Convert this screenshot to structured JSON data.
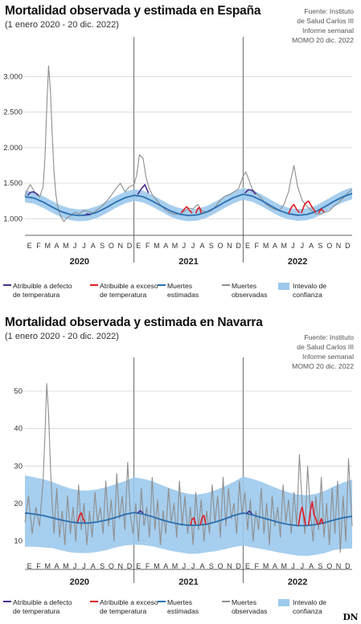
{
  "chart_data": [
    {
      "type": "line",
      "title": "Mortalidad observada y estimada en España",
      "subtitle": "(1 enero 2020 - 20 dic. 2022)",
      "source": [
        "Fuente: Instituto",
        "de Salud Carlos III",
        "Informe semanal",
        "MOMO 20 dic. 2022"
      ],
      "ylim": [
        880,
        3400
      ],
      "yticks": [
        1000,
        1500,
        2000,
        2500,
        3000
      ],
      "ytick_labels": [
        "1.000",
        "1.500",
        "2.000",
        "2.500",
        "3.000"
      ],
      "months": [
        "E",
        "F",
        "M",
        "A",
        "M",
        "J",
        "J",
        "A",
        "S",
        "O",
        "N",
        "D",
        "E",
        "F",
        "M",
        "A",
        "M",
        "J",
        "J",
        "A",
        "S",
        "O",
        "N",
        "D",
        "E",
        "F",
        "M",
        "A",
        "M",
        "J",
        "J",
        "A",
        "S",
        "O",
        "N",
        "D"
      ],
      "years": [
        "2020",
        "2021",
        "2022"
      ],
      "grid": true,
      "legend_position": "bottom",
      "expected": {
        "name": "Muertes estimadas",
        "color": "#2a6fb0",
        "x": [
          0,
          1,
          2,
          3,
          4,
          5,
          6,
          7,
          8,
          9,
          10,
          11,
          12,
          13,
          14,
          15,
          16,
          17,
          18,
          19,
          20,
          21,
          22,
          23,
          24,
          25,
          26,
          27,
          28,
          29,
          30,
          31,
          32,
          33,
          34,
          35,
          36
        ],
        "values": [
          1310,
          1290,
          1235,
          1165,
          1100,
          1060,
          1045,
          1055,
          1095,
          1160,
          1235,
          1295,
          1330,
          1310,
          1250,
          1180,
          1110,
          1065,
          1045,
          1055,
          1095,
          1160,
          1235,
          1300,
          1345,
          1320,
          1260,
          1185,
          1115,
          1070,
          1050,
          1060,
          1100,
          1170,
          1245,
          1310,
          1355
        ]
      },
      "interval": {
        "name": "Intevalo de confianza",
        "color": "#9cc9ec",
        "lower_offset": -80,
        "upper_offset": 85
      },
      "observed": {
        "name": "Muertes observadas",
        "color": "#8e8e8e",
        "x": [
          0,
          0.3,
          0.6,
          1,
          1.3,
          1.6,
          2,
          2.2,
          2.4,
          2.6,
          2.8,
          3,
          3.2,
          3.4,
          3.6,
          3.8,
          4,
          4.3,
          4.6,
          5,
          5.5,
          6,
          6.5,
          7,
          7.5,
          8,
          8.5,
          9,
          9.5,
          10,
          10.5,
          11,
          11.5,
          12,
          12.3,
          12.6,
          13,
          13.3,
          13.6,
          14,
          14.5,
          15,
          15.5,
          16,
          16.5,
          17,
          17.5,
          18,
          18.5,
          19,
          19.5,
          20,
          20.5,
          21,
          21.5,
          22,
          22.5,
          23,
          23.5,
          24,
          24.3,
          24.6,
          25,
          25.5,
          26,
          26.5,
          27,
          27.5,
          28,
          28.5,
          29,
          29.3,
          29.6,
          30,
          30.5,
          31,
          31.5,
          32,
          32.5,
          33,
          33.5,
          34,
          34.5,
          35,
          35.5,
          36
        ],
        "values": [
          1320,
          1420,
          1480,
          1390,
          1340,
          1300,
          1450,
          1850,
          2550,
          3150,
          2800,
          2200,
          1650,
          1350,
          1180,
          1080,
          1020,
          960,
          1010,
          1040,
          1090,
          1070,
          1120,
          1100,
          1080,
          1130,
          1180,
          1250,
          1330,
          1420,
          1500,
          1380,
          1450,
          1480,
          1620,
          1900,
          1850,
          1600,
          1450,
          1340,
          1260,
          1180,
          1120,
          1080,
          1060,
          1070,
          1100,
          1150,
          1140,
          1200,
          1110,
          1090,
          1110,
          1180,
          1260,
          1320,
          1340,
          1380,
          1420,
          1600,
          1660,
          1560,
          1420,
          1350,
          1290,
          1210,
          1160,
          1130,
          1120,
          1200,
          1380,
          1580,
          1750,
          1450,
          1260,
          1180,
          1120,
          1070,
          1060,
          1090,
          1110,
          1180,
          1230,
          1290,
          1360,
          1410
        ]
      },
      "excess_heat": {
        "name": "Atribuible a exceso de temperatura",
        "color": "#e01b22",
        "segments": [
          {
            "x": [
              17.2,
              17.5,
              17.8,
              18.1,
              18.4
            ],
            "values": [
              1085,
              1130,
              1170,
              1120,
              1080
            ]
          },
          {
            "x": [
              18.8,
              19.0,
              19.2,
              19.4
            ],
            "values": [
              1075,
              1140,
              1160,
              1080
            ]
          },
          {
            "x": [
              29.0,
              29.3,
              29.6,
              29.9,
              30.2
            ],
            "values": [
              1070,
              1160,
              1200,
              1130,
              1085
            ]
          },
          {
            "x": [
              30.4,
              30.8,
              31.2,
              31.6,
              32.0
            ],
            "values": [
              1080,
              1210,
              1250,
              1160,
              1090
            ]
          },
          {
            "x": [
              32.3,
              32.6,
              32.9
            ],
            "values": [
              1080,
              1140,
              1095
            ]
          }
        ]
      },
      "cold_defect": {
        "name": "Atribuible a defecto de temperatura",
        "color": "#4b2e8e",
        "segments": [
          {
            "x": [
              0.3,
              0.6,
              0.9,
              1.2,
              1.5
            ],
            "values": [
              1330,
              1370,
              1380,
              1360,
              1330
            ]
          },
          {
            "x": [
              6.6,
              6.9,
              7.2
            ],
            "values": [
              1050,
              1070,
              1055
            ]
          },
          {
            "x": [
              12.4,
              12.8,
              13.2,
              13.6
            ],
            "values": [
              1340,
              1420,
              1480,
              1360
            ]
          },
          {
            "x": [
              24.2,
              24.6,
              25.0,
              25.4
            ],
            "values": [
              1360,
              1410,
              1400,
              1345
            ]
          }
        ]
      }
    },
    {
      "type": "line",
      "title": "Mortalidad observada y estimada en Navarra",
      "subtitle": "(1 enero 2020 - 20 dic. 2022)",
      "source": [
        "Fuente: Instituto",
        "de Salud Carlos III",
        "Informe semanal",
        "MOMO 20 dic. 2022"
      ],
      "ylim": [
        5,
        56
      ],
      "yticks": [
        10,
        20,
        30,
        40,
        50
      ],
      "ytick_labels": [
        "10",
        "20",
        "30",
        "40",
        "50"
      ],
      "months": [
        "E",
        "F",
        "M",
        "A",
        "M",
        "J",
        "J",
        "A",
        "S",
        "O",
        "N",
        "D",
        "E",
        "F",
        "M",
        "A",
        "M",
        "J",
        "J",
        "A",
        "S",
        "O",
        "N",
        "D",
        "E",
        "F",
        "M",
        "A",
        "M",
        "J",
        "J",
        "A",
        "S",
        "O",
        "N",
        "D"
      ],
      "years": [
        "2020",
        "2021",
        "2022"
      ],
      "grid": true,
      "legend_position": "bottom",
      "expected": {
        "name": "Muertes estimadas",
        "color": "#2a6fb0",
        "x": [
          0,
          1,
          2,
          3,
          4,
          5,
          6,
          7,
          8,
          9,
          10,
          11,
          12,
          13,
          14,
          15,
          16,
          17,
          18,
          19,
          20,
          21,
          22,
          23,
          24,
          25,
          26,
          27,
          28,
          29,
          30,
          31,
          32,
          33,
          34,
          35,
          36
        ],
        "values": [
          17.5,
          17.2,
          16.8,
          16.2,
          15.6,
          15.1,
          14.8,
          14.8,
          15.1,
          15.6,
          16.3,
          17.1,
          17.6,
          17.2,
          16.5,
          15.7,
          15.0,
          14.5,
          14.2,
          14.2,
          14.5,
          15.1,
          15.9,
          16.8,
          17.5,
          17.0,
          16.3,
          15.6,
          14.9,
          14.4,
          14.1,
          14.1,
          14.4,
          14.9,
          15.6,
          16.2,
          16.6
        ]
      },
      "interval": {
        "name": "Intevalo de confianza",
        "color": "#9cc9ec",
        "lower": [
          8.5,
          8.5,
          8.3,
          8.1,
          7.5,
          7.0,
          6.8,
          6.8,
          7.1,
          7.6,
          8.3,
          8.8,
          9.0,
          8.9,
          8.6,
          8.0,
          7.4,
          7.0,
          6.6,
          6.6,
          7.0,
          7.3,
          7.8,
          8.4,
          8.8,
          8.3,
          7.9,
          7.4,
          6.9,
          6.5,
          6.1,
          6.0,
          6.3,
          6.8,
          7.6,
          7.9,
          8.0
        ],
        "upper": [
          27.5,
          27.0,
          26.5,
          25.8,
          24.8,
          24.0,
          23.5,
          23.5,
          23.8,
          24.4,
          25.2,
          26.0,
          27.0,
          26.6,
          26.0,
          25.0,
          24.0,
          23.2,
          22.6,
          22.4,
          22.8,
          23.6,
          24.6,
          25.8,
          27.2,
          26.6,
          25.8,
          24.8,
          23.8,
          23.0,
          22.4,
          22.2,
          22.6,
          23.4,
          24.6,
          25.6,
          26.4
        ]
      },
      "observed": {
        "name": "Muertes observadas",
        "color": "#8e8e8e",
        "x": [
          0,
          0.4,
          0.8,
          1.2,
          1.6,
          2.0,
          2.2,
          2.4,
          2.6,
          2.8,
          3.0,
          3.2,
          3.5,
          3.8,
          4.1,
          4.4,
          4.7,
          5.0,
          5.3,
          5.6,
          5.9,
          6.2,
          6.5,
          6.8,
          7.1,
          7.4,
          7.7,
          8.0,
          8.3,
          8.6,
          8.9,
          9.2,
          9.5,
          9.8,
          10.1,
          10.4,
          10.7,
          11.0,
          11.3,
          11.6,
          11.9,
          12.2,
          12.5,
          12.8,
          13.1,
          13.4,
          13.7,
          14.0,
          14.3,
          14.6,
          14.9,
          15.2,
          15.5,
          15.8,
          16.1,
          16.4,
          16.7,
          17.0,
          17.3,
          17.6,
          17.9,
          18.2,
          18.5,
          18.8,
          19.1,
          19.4,
          19.7,
          20.0,
          20.3,
          20.6,
          20.9,
          21.2,
          21.5,
          21.8,
          22.1,
          22.4,
          22.7,
          23.0,
          23.3,
          23.6,
          23.9,
          24.2,
          24.5,
          24.8,
          25.1,
          25.4,
          25.7,
          26.0,
          26.3,
          26.6,
          26.9,
          27.2,
          27.5,
          27.8,
          28.1,
          28.4,
          28.7,
          29.0,
          29.3,
          29.6,
          29.9,
          30.2,
          30.5,
          30.8,
          31.1,
          31.4,
          31.7,
          32.0,
          32.3,
          32.6,
          32.9,
          33.2,
          33.5,
          33.8,
          34.1,
          34.4,
          34.7,
          35.0,
          35.3,
          35.6,
          36.0
        ],
        "values": [
          15,
          22,
          12,
          19,
          14,
          26,
          38,
          52,
          44,
          30,
          20,
          12,
          24,
          11,
          18,
          9,
          22,
          12,
          19,
          10,
          25,
          13,
          20,
          9,
          18,
          11,
          23,
          15,
          19,
          12,
          26,
          14,
          21,
          10,
          28,
          16,
          22,
          13,
          31,
          17,
          12,
          20,
          10,
          24,
          14,
          19,
          11,
          27,
          13,
          21,
          9,
          18,
          12,
          24,
          15,
          20,
          11,
          26,
          14,
          22,
          12,
          19,
          9,
          23,
          13,
          21,
          10,
          18,
          12,
          25,
          15,
          22,
          11,
          27,
          14,
          24,
          16,
          20,
          12,
          26,
          17,
          23,
          13,
          21,
          10,
          18,
          13,
          24,
          12,
          20,
          9,
          22,
          14,
          19,
          11,
          25,
          15,
          21,
          12,
          23,
          14,
          33,
          20,
          12,
          30,
          18,
          10,
          22,
          13,
          27,
          11,
          20,
          9,
          24,
          12,
          26,
          7,
          22,
          10,
          32,
          14
        ]
      },
      "excess_heat": {
        "name": "Atribuible a exceso de temperatura",
        "color": "#e01b22",
        "segments": [
          {
            "x": [
              5.8,
              6.0,
              6.2,
              6.4,
              6.6
            ],
            "values": [
              15.0,
              16.8,
              17.5,
              16.0,
              15.0
            ]
          },
          {
            "x": [
              18.2,
              18.4,
              18.6,
              18.8
            ],
            "values": [
              14.3,
              15.8,
              16.2,
              14.4
            ]
          },
          {
            "x": [
              19.3,
              19.5,
              19.7,
              19.9
            ],
            "values": [
              14.3,
              16.4,
              16.8,
              14.5
            ]
          },
          {
            "x": [
              30.1,
              30.3,
              30.5,
              30.7,
              30.9
            ],
            "values": [
              14.1,
              17.5,
              19.0,
              16.5,
              14.2
            ]
          },
          {
            "x": [
              31.2,
              31.4,
              31.6,
              31.8,
              32.0,
              32.2
            ],
            "values": [
              14.2,
              18.0,
              20.5,
              17.0,
              16.0,
              14.4
            ]
          },
          {
            "x": [
              32.4,
              32.6,
              32.8
            ],
            "values": [
              14.4,
              16.0,
              14.5
            ]
          }
        ]
      },
      "cold_defect": {
        "name": "Atribuible a defecto de temperatura",
        "color": "#4b2e8e",
        "segments": [
          {
            "x": [
              12.4,
              12.7,
              13.0
            ],
            "values": [
              17.5,
              18.1,
              17.4
            ]
          },
          {
            "x": [
              24.4,
              24.7,
              25.0
            ],
            "values": [
              17.4,
              18.0,
              17.2
            ]
          }
        ]
      }
    }
  ],
  "legend": [
    {
      "key": "cold_defect",
      "lines": [
        "Atribuible a defecto",
        "de temperatura"
      ],
      "color": "#4b2e8e",
      "kind": "line"
    },
    {
      "key": "excess_heat",
      "lines": [
        "Atribuible a exceso",
        "de temperatura"
      ],
      "color": "#e01b22",
      "kind": "line"
    },
    {
      "key": "expected",
      "lines": [
        "Muertes",
        "estimadas"
      ],
      "color": "#2a6fb0",
      "kind": "line"
    },
    {
      "key": "observed",
      "lines": [
        "Muertes",
        "observadas"
      ],
      "color": "#8e8e8e",
      "kind": "line"
    },
    {
      "key": "interval",
      "lines": [
        "Intevalo de",
        "confianza"
      ],
      "color": "#9cc9ec",
      "kind": "box"
    }
  ],
  "brand": "DN"
}
